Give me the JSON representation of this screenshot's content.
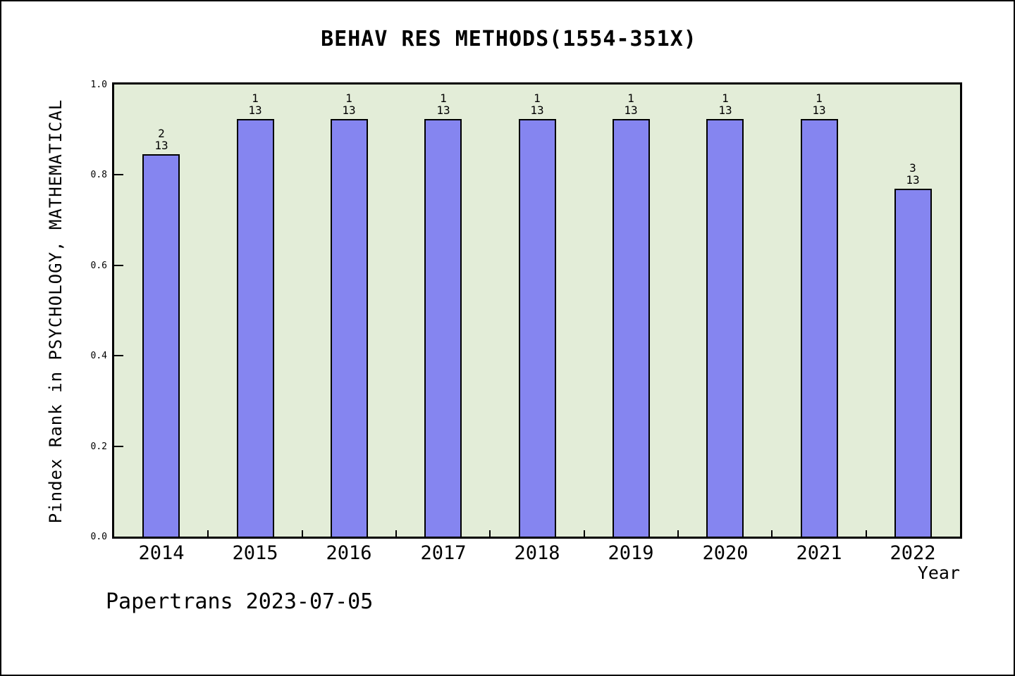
{
  "title": "BEHAV RES METHODS(1554-351X)",
  "footer": "Papertrans 2023-07-05",
  "chart_data": {
    "type": "bar",
    "title": "BEHAV RES METHODS(1554-351X)",
    "xlabel": "Year",
    "ylabel": "Pindex Rank in PSYCHOLOGY, MATHEMATICAL",
    "categories": [
      "2014",
      "2015",
      "2016",
      "2017",
      "2018",
      "2019",
      "2020",
      "2021",
      "2022"
    ],
    "values": [
      0.846,
      0.923,
      0.923,
      0.923,
      0.923,
      0.923,
      0.923,
      0.923,
      0.769
    ],
    "ranks": [
      2,
      1,
      1,
      1,
      1,
      1,
      1,
      1,
      3
    ],
    "rank_total": 13,
    "bar_labels": [
      "2\n13",
      "1\n13",
      "1\n13",
      "1\n13",
      "1\n13",
      "1\n13",
      "1\n13",
      "1\n13",
      "3\n13"
    ],
    "ylim": [
      0.0,
      1.0
    ],
    "ytick_labels": [
      "0.0",
      "0.2",
      "0.4",
      "0.6",
      "0.8",
      "1.0"
    ],
    "yticks": [
      0.0,
      0.2,
      0.4,
      0.6,
      0.8,
      1.0
    ],
    "grid": false,
    "legend_position": "none",
    "bar_color": "#8585f0",
    "bar_border_color": "#000000",
    "plot_bg_color": "#e3edd8",
    "canvas_bg_color": "#ffffff"
  }
}
